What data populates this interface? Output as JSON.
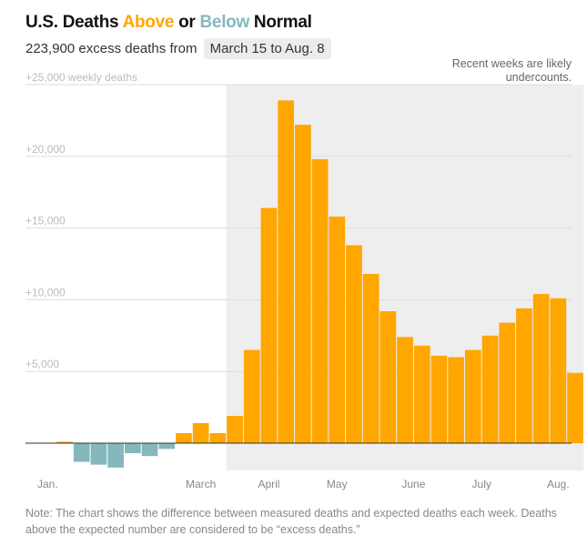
{
  "header": {
    "title_prefix": "U.S. Deaths ",
    "title_above": "Above",
    "title_or": " or ",
    "title_below": "Below",
    "title_suffix": " Normal",
    "subtitle": "223,900 excess deaths from",
    "date_range": "March 15 to Aug. 8"
  },
  "note": "Note: The chart shows the difference between measured deaths and expected deaths each week. Deaths above the expected number are considered to be “excess deaths.”",
  "colors": {
    "above": "#ffa600",
    "below": "#84b8bc",
    "shade": "#eeeeee",
    "grid": "#dddddd",
    "baseline": "#333333"
  },
  "chart_data": {
    "type": "bar",
    "ylabel": "weekly deaths",
    "ylim": [
      -1800,
      25000
    ],
    "yticks": [
      {
        "value": 25000,
        "label": "+25,000 weekly deaths"
      },
      {
        "value": 20000,
        "label": "+20,000"
      },
      {
        "value": 15000,
        "label": "+15,000"
      },
      {
        "value": 10000,
        "label": "+10,000"
      },
      {
        "value": 5000,
        "label": "+5,000"
      }
    ],
    "x_tick_labels": [
      {
        "week": 0.5,
        "label": "Jan."
      },
      {
        "week": 9.5,
        "label": "March"
      },
      {
        "week": 13.5,
        "label": "April"
      },
      {
        "week": 17.5,
        "label": "May"
      },
      {
        "week": 22,
        "label": "June"
      },
      {
        "week": 26,
        "label": "July"
      },
      {
        "week": 30.5,
        "label": "Aug."
      }
    ],
    "shaded_region": {
      "start_week": 11,
      "end_week": 32
    },
    "annotation": [
      "Recent weeks are likely",
      "undercounts."
    ],
    "values": [
      0,
      100,
      -1300,
      -1500,
      -1700,
      -700,
      -900,
      -400,
      700,
      1400,
      700,
      1900,
      6500,
      16400,
      23900,
      22200,
      19800,
      15800,
      13800,
      11800,
      9200,
      7400,
      6800,
      6100,
      6000,
      6500,
      7500,
      8400,
      9400,
      10400,
      10100,
      4900
    ]
  }
}
